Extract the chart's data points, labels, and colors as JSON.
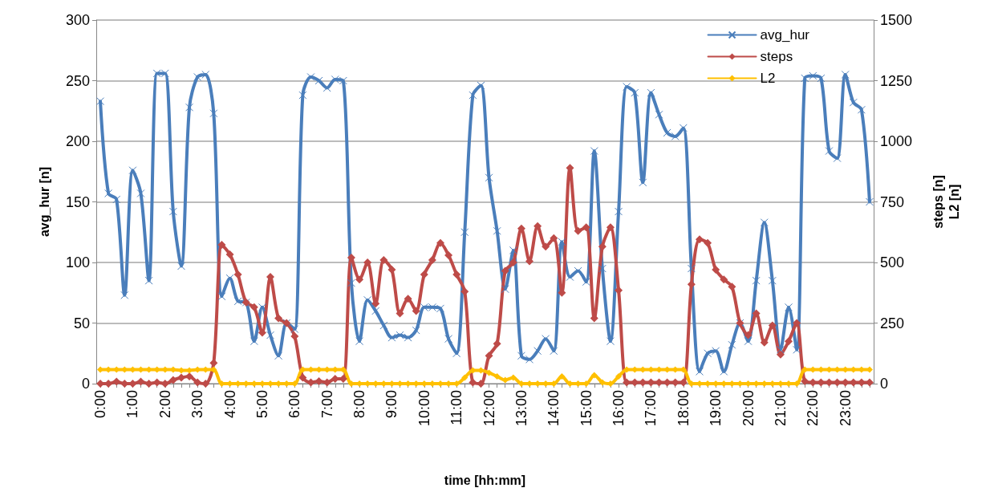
{
  "chart_data": {
    "type": "line",
    "xlabel": "time [hh:mm]",
    "ylabel": "avg_hur [n]",
    "y2label": "steps [n]\nL2 [n]",
    "categories": [
      "0:00",
      null,
      null,
      null,
      "1:00",
      null,
      null,
      null,
      "2:00",
      null,
      null,
      null,
      "3:00",
      null,
      null,
      null,
      "4:00",
      null,
      null,
      null,
      "5:00",
      null,
      null,
      null,
      "6:00",
      null,
      null,
      null,
      "7:00",
      null,
      null,
      null,
      "8:00",
      null,
      null,
      null,
      "9:00",
      null,
      null,
      null,
      "10:00",
      null,
      null,
      null,
      "11:00",
      null,
      null,
      null,
      "12:00",
      null,
      null,
      null,
      "13:00",
      null,
      null,
      null,
      "14:00",
      null,
      null,
      null,
      "15:00",
      null,
      null,
      null,
      "16:00",
      null,
      null,
      null,
      "17:00",
      null,
      null,
      null,
      "18:00",
      null,
      null,
      null,
      "19:00",
      null,
      null,
      null,
      "20:00",
      null,
      null,
      null,
      "21:00",
      null,
      null,
      null,
      "22:00",
      null,
      null,
      null,
      "23:00",
      null,
      null,
      null
    ],
    "series": [
      {
        "name": "avg_hur",
        "color": "#4a7ebb",
        "marker": "cross",
        "values": [
          233,
          157,
          152,
          73,
          176,
          157,
          85,
          256,
          256,
          142,
          97,
          228,
          253,
          255,
          223,
          72,
          87,
          68,
          67,
          35,
          63,
          40,
          23,
          50,
          45,
          238,
          253,
          250,
          244,
          251,
          250,
          83,
          35,
          69,
          60,
          48,
          38,
          40,
          38,
          44,
          63,
          63,
          62,
          37,
          25,
          125,
          238,
          246,
          170,
          126,
          78,
          110,
          23,
          20,
          27,
          37,
          27,
          117,
          88,
          93,
          84,
          192,
          95,
          35,
          142,
          245,
          240,
          166,
          240,
          222,
          207,
          204,
          211,
          95,
          10,
          25,
          27,
          10,
          32,
          50,
          35,
          85,
          133,
          85,
          28,
          63,
          28,
          252,
          254,
          252,
          192,
          186,
          255,
          232,
          226,
          150
        ]
      },
      {
        "name": "steps",
        "color": "#be4b48",
        "marker": "diamond",
        "axis": "y2",
        "values": [
          0,
          0,
          8,
          0,
          0,
          8,
          0,
          5,
          0,
          15,
          25,
          30,
          5,
          0,
          85,
          573,
          533,
          450,
          335,
          315,
          210,
          440,
          270,
          250,
          195,
          25,
          5,
          10,
          5,
          20,
          20,
          520,
          430,
          500,
          330,
          510,
          470,
          290,
          350,
          300,
          450,
          510,
          580,
          530,
          450,
          380,
          5,
          0,
          115,
          165,
          465,
          500,
          640,
          505,
          650,
          565,
          600,
          375,
          890,
          630,
          645,
          270,
          565,
          645,
          385,
          5,
          5,
          5,
          5,
          5,
          5,
          5,
          5,
          410,
          595,
          580,
          470,
          430,
          400,
          250,
          200,
          290,
          170,
          240,
          120,
          175,
          250,
          10,
          5,
          5,
          5,
          5,
          5,
          5,
          5,
          5
        ]
      },
      {
        "name": "L2",
        "color": "#ffc000",
        "marker": "diamond",
        "axis": "y2",
        "values": [
          58,
          58,
          58,
          58,
          58,
          58,
          58,
          58,
          58,
          58,
          55,
          55,
          58,
          58,
          58,
          0,
          0,
          0,
          0,
          0,
          0,
          0,
          0,
          0,
          0,
          58,
          58,
          58,
          58,
          58,
          58,
          0,
          0,
          0,
          0,
          0,
          0,
          0,
          0,
          0,
          0,
          0,
          0,
          0,
          0,
          25,
          55,
          55,
          45,
          30,
          15,
          25,
          0,
          0,
          0,
          0,
          0,
          30,
          0,
          0,
          0,
          35,
          5,
          0,
          30,
          58,
          58,
          58,
          58,
          58,
          58,
          58,
          58,
          0,
          0,
          0,
          0,
          0,
          0,
          0,
          0,
          0,
          0,
          0,
          0,
          0,
          0,
          58,
          58,
          58,
          58,
          58,
          58,
          58,
          58,
          58
        ]
      }
    ],
    "ylim": [
      0,
      300
    ],
    "yticks": [
      0,
      50,
      100,
      150,
      200,
      250,
      300
    ],
    "y2lim": [
      0,
      1500
    ],
    "y2ticks": [
      0,
      250,
      500,
      750,
      1000,
      1250,
      1500
    ],
    "grid": "y",
    "legend": "top right",
    "line_style": "solid"
  }
}
